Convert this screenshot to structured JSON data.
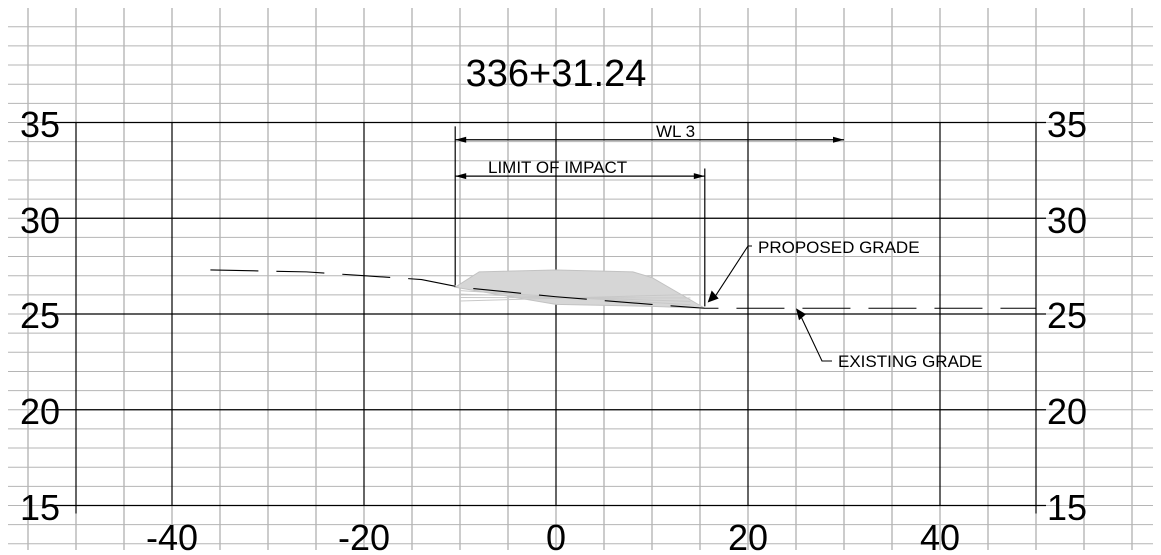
{
  "title": "336+31.24",
  "x_ticks": [
    "-40",
    "-20",
    "0",
    "20",
    "40"
  ],
  "y_ticks_left": [
    "35",
    "30",
    "25",
    "20",
    "15"
  ],
  "y_ticks_right": [
    "35",
    "30",
    "25",
    "20",
    "15"
  ],
  "labels": {
    "wl": "WL 3",
    "limit": "LIMIT OF IMPACT",
    "proposed": "PROPOSED GRADE",
    "existing": "EXISTING GRADE"
  },
  "chart_data": {
    "type": "line",
    "title": "336+31.24",
    "xlim": [
      -50,
      50
    ],
    "ylim": [
      15,
      35
    ],
    "grid": true,
    "series": [
      {
        "name": "EXISTING GRADE",
        "x": [
          -36,
          -26,
          -20,
          -14,
          -10,
          0,
          10,
          15.5,
          20,
          30,
          40,
          50
        ],
        "y": [
          27.3,
          27.2,
          27.0,
          26.8,
          26.4,
          25.9,
          25.5,
          25.3,
          25.3,
          25.3,
          25.3,
          25.3
        ]
      },
      {
        "name": "PROPOSED GRADE",
        "x": [
          -10.5,
          -8,
          0,
          8,
          10,
          15.5,
          10,
          0,
          -10.5
        ],
        "y": [
          26.4,
          27.2,
          27.3,
          27.2,
          26.9,
          25.3,
          25.4,
          25.5,
          26.4
        ]
      }
    ],
    "annotations": [
      {
        "text": "WL 3",
        "x_from": -10.5,
        "x_to": 30,
        "y": 34.1
      },
      {
        "text": "LIMIT OF IMPACT",
        "x_from": -10.5,
        "x_to": 15.5,
        "y": 32.2
      },
      {
        "text": "PROPOSED GRADE"
      },
      {
        "text": "EXISTING GRADE"
      }
    ]
  }
}
